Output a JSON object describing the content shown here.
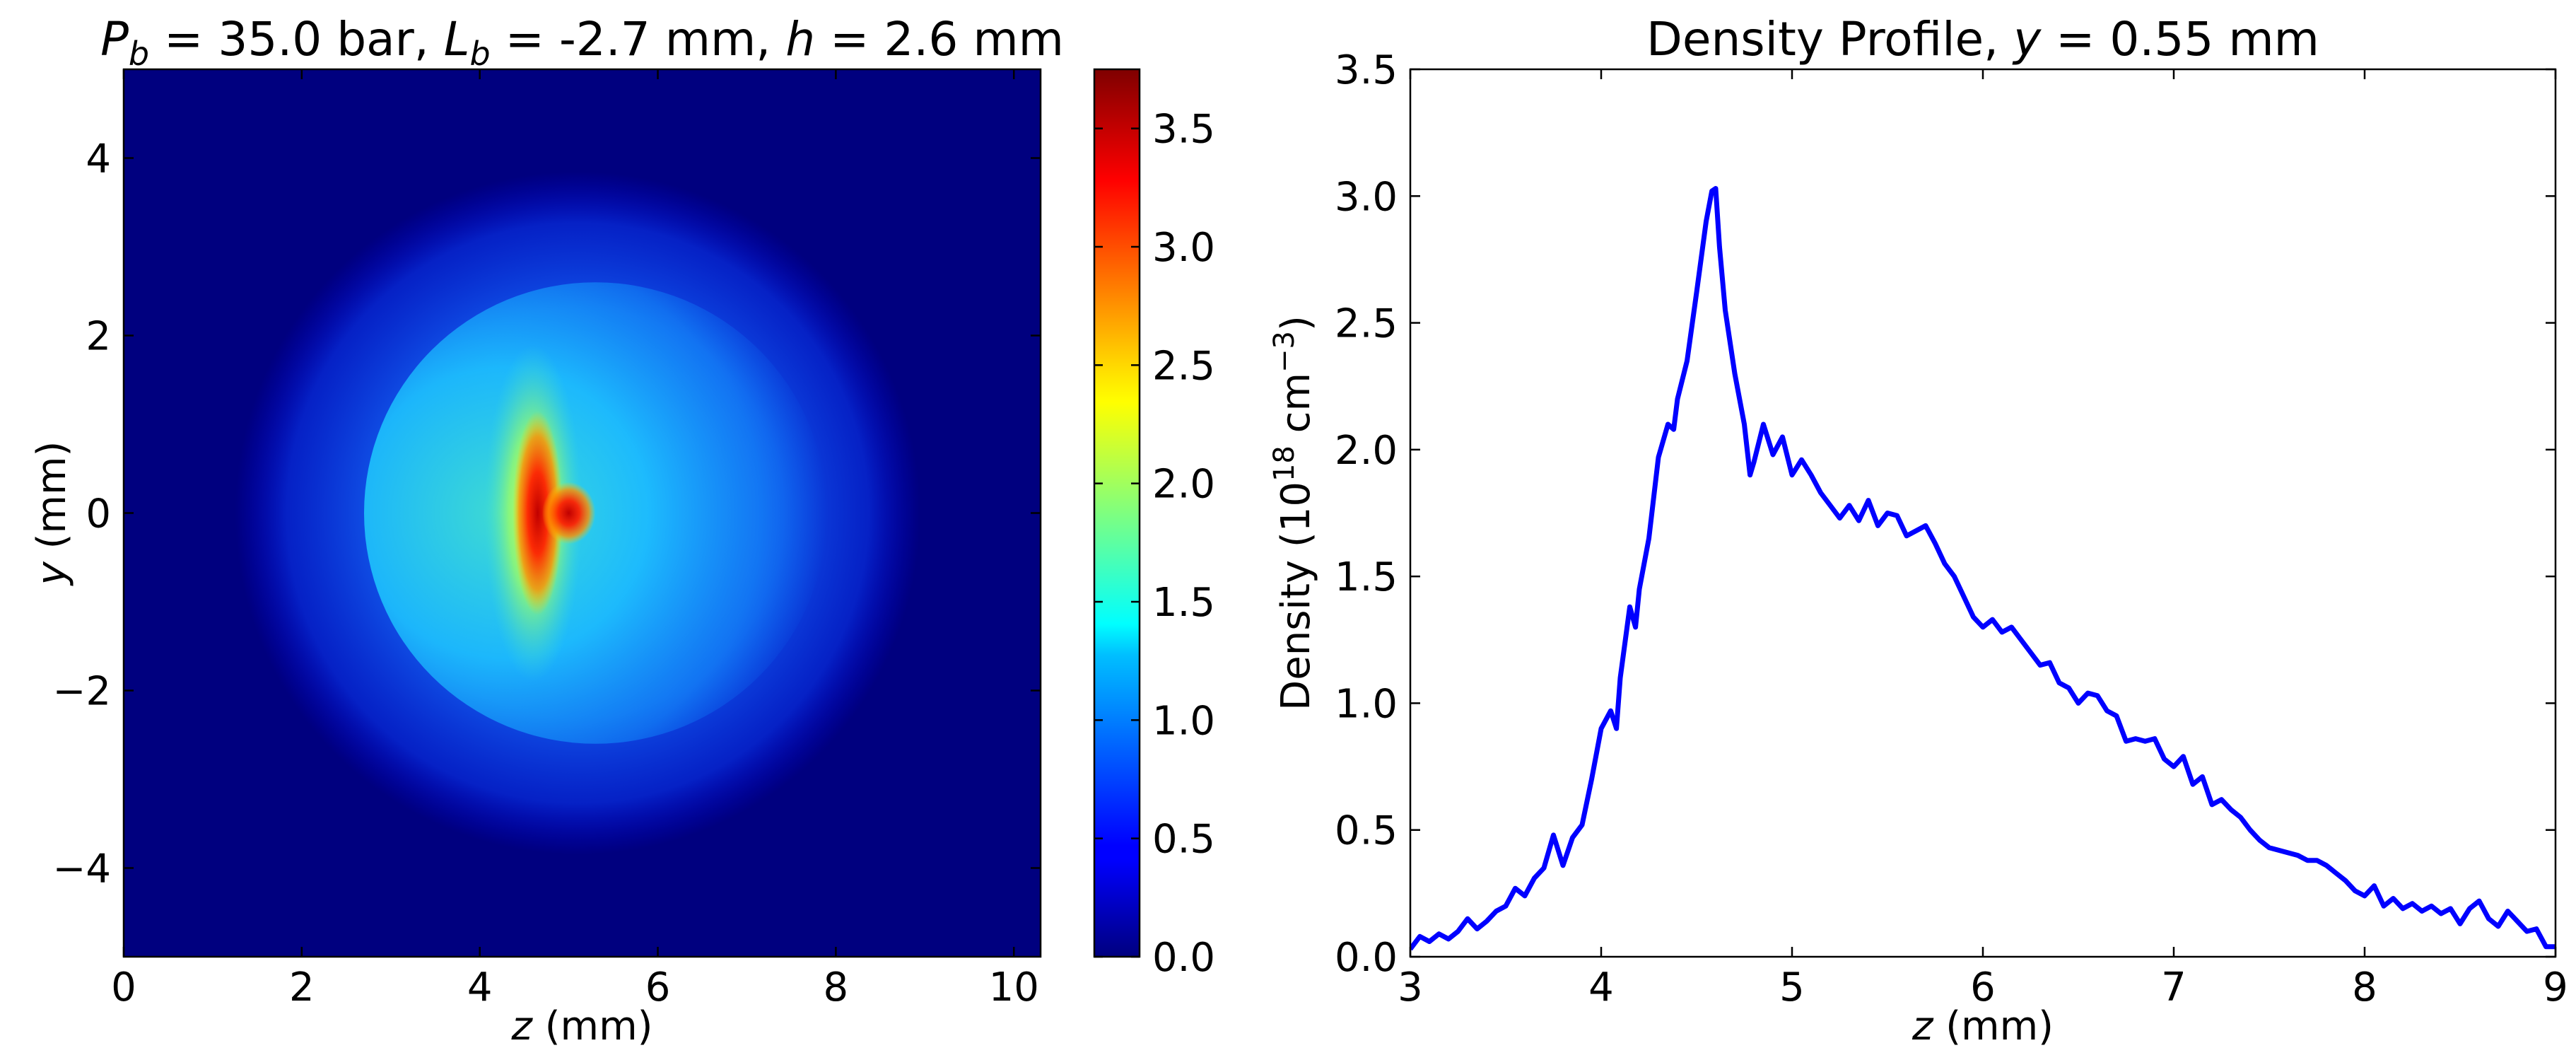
{
  "chart_data": [
    {
      "type": "heatmap",
      "title_parts": [
        {
          "text": "P",
          "italic": true
        },
        {
          "text": "b",
          "italic": true,
          "sub": true
        },
        {
          "text": " = ",
          "italic": false
        },
        {
          "text": "35.0 bar, ",
          "italic": false
        },
        {
          "text": "L",
          "italic": true
        },
        {
          "text": "b",
          "italic": true,
          "sub": true
        },
        {
          "text": " = ",
          "italic": false
        },
        {
          "text": "-2.7 mm, ",
          "italic": false
        },
        {
          "text": "h",
          "italic": true
        },
        {
          "text": " = ",
          "italic": false
        },
        {
          "text": "2.6 mm",
          "italic": false
        }
      ],
      "xlabel_var": "z",
      "xlabel_unit": " (mm)",
      "ylabel_var": "y",
      "ylabel_unit": " (mm)",
      "xlim": [
        0,
        10.3
      ],
      "ylim": [
        -5,
        5
      ],
      "xticks": [
        0,
        2,
        4,
        6,
        8,
        10
      ],
      "yticks": [
        -4,
        -2,
        0,
        2,
        4
      ],
      "ytick_labels": [
        "−4",
        "−2",
        "0",
        "2",
        "4"
      ],
      "colormap": "jet",
      "colorbar": {
        "range": [
          0,
          3.75
        ],
        "ticks": [
          "0.0",
          "0.5",
          "1.0",
          "1.5",
          "2.0",
          "2.5",
          "3.0",
          "3.5"
        ],
        "tick_values": [
          0,
          0.5,
          1.0,
          1.5,
          2.0,
          2.5,
          3.0,
          3.5
        ]
      },
      "features": {
        "peak_value": 3.7,
        "peak_location": {
          "z": 4.65,
          "y": 0
        },
        "plume_outer_radius_mm": 3.85,
        "plume_center_z_mm": 5.1,
        "front_edge_z_mm": 4.5
      }
    },
    {
      "type": "line",
      "title_prefix": "Density Profile, ",
      "title_var": "y",
      "title_suffix": " = 0.55 mm",
      "xlabel_var": "z",
      "xlabel_unit": " (mm)",
      "ylabel_text": "Density (10",
      "ylabel_sup": "18",
      "ylabel_mid": " cm",
      "ylabel_sup2": "−3",
      "ylabel_end": ")",
      "xlim": [
        3,
        9
      ],
      "ylim": [
        0,
        3.5
      ],
      "xticks": [
        "3",
        "4",
        "5",
        "6",
        "7",
        "8",
        "9"
      ],
      "xtick_values": [
        3,
        4,
        5,
        6,
        7,
        8,
        9
      ],
      "yticks": [
        "0.0",
        "0.5",
        "1.0",
        "1.5",
        "2.0",
        "2.5",
        "3.0",
        "3.5"
      ],
      "ytick_values": [
        0,
        0.5,
        1.0,
        1.5,
        2.0,
        2.5,
        3.0,
        3.5
      ],
      "line_color": "#0000ff",
      "series": [
        {
          "name": "density",
          "x": [
            3.0,
            3.05,
            3.1,
            3.15,
            3.2,
            3.25,
            3.3,
            3.35,
            3.4,
            3.45,
            3.5,
            3.55,
            3.6,
            3.65,
            3.7,
            3.75,
            3.8,
            3.85,
            3.9,
            3.95,
            4.0,
            4.05,
            4.08,
            4.1,
            4.15,
            4.18,
            4.2,
            4.25,
            4.3,
            4.35,
            4.38,
            4.4,
            4.45,
            4.5,
            4.55,
            4.58,
            4.6,
            4.62,
            4.65,
            4.7,
            4.75,
            4.78,
            4.8,
            4.85,
            4.9,
            4.95,
            5.0,
            5.05,
            5.1,
            5.15,
            5.2,
            5.25,
            5.3,
            5.35,
            5.4,
            5.45,
            5.5,
            5.55,
            5.6,
            5.65,
            5.7,
            5.75,
            5.8,
            5.85,
            5.9,
            5.95,
            6.0,
            6.05,
            6.1,
            6.15,
            6.2,
            6.25,
            6.3,
            6.35,
            6.4,
            6.45,
            6.5,
            6.55,
            6.6,
            6.65,
            6.7,
            6.75,
            6.8,
            6.85,
            6.9,
            6.95,
            7.0,
            7.05,
            7.1,
            7.15,
            7.2,
            7.25,
            7.3,
            7.35,
            7.4,
            7.45,
            7.5,
            7.55,
            7.6,
            7.65,
            7.7,
            7.75,
            7.8,
            7.85,
            7.9,
            7.95,
            8.0,
            8.05,
            8.1,
            8.15,
            8.2,
            8.25,
            8.3,
            8.35,
            8.4,
            8.45,
            8.5,
            8.55,
            8.6,
            8.65,
            8.7,
            8.75,
            8.8,
            8.85,
            8.9,
            8.95,
            9.0
          ],
          "y": [
            0.03,
            0.08,
            0.06,
            0.09,
            0.07,
            0.1,
            0.15,
            0.11,
            0.14,
            0.18,
            0.2,
            0.27,
            0.24,
            0.31,
            0.35,
            0.48,
            0.36,
            0.47,
            0.52,
            0.7,
            0.9,
            0.97,
            0.9,
            1.1,
            1.38,
            1.3,
            1.45,
            1.65,
            1.97,
            2.1,
            2.08,
            2.2,
            2.35,
            2.62,
            2.9,
            3.02,
            3.03,
            2.8,
            2.55,
            2.3,
            2.1,
            1.9,
            1.95,
            2.1,
            1.98,
            2.05,
            1.9,
            1.96,
            1.9,
            1.83,
            1.78,
            1.73,
            1.78,
            1.72,
            1.8,
            1.7,
            1.75,
            1.74,
            1.66,
            1.68,
            1.7,
            1.63,
            1.55,
            1.5,
            1.42,
            1.34,
            1.3,
            1.33,
            1.28,
            1.3,
            1.25,
            1.2,
            1.15,
            1.16,
            1.08,
            1.06,
            1.0,
            1.04,
            1.03,
            0.97,
            0.95,
            0.85,
            0.86,
            0.85,
            0.86,
            0.78,
            0.75,
            0.79,
            0.68,
            0.71,
            0.6,
            0.62,
            0.58,
            0.55,
            0.5,
            0.46,
            0.43,
            0.42,
            0.41,
            0.4,
            0.38,
            0.38,
            0.36,
            0.33,
            0.3,
            0.26,
            0.24,
            0.28,
            0.2,
            0.23,
            0.19,
            0.21,
            0.18,
            0.2,
            0.17,
            0.19,
            0.13,
            0.19,
            0.22,
            0.15,
            0.12,
            0.18,
            0.14,
            0.1,
            0.11,
            0.04,
            0.04
          ]
        }
      ]
    }
  ]
}
